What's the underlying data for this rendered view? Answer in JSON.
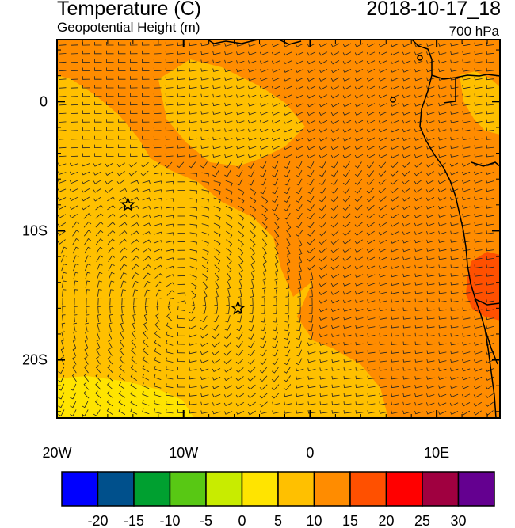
{
  "header": {
    "title": "Temperature (C)",
    "subtitle": "Geopotential Height (m)",
    "datetime": "2018-10-17_18",
    "level": "700 hPa"
  },
  "map": {
    "lon_range": [
      -20,
      15
    ],
    "lat_range": [
      -24.5,
      4.8
    ],
    "x_ticks": [
      {
        "value": -20,
        "label": "20W"
      },
      {
        "value": -10,
        "label": "10W"
      },
      {
        "value": 0,
        "label": "0"
      },
      {
        "value": 10,
        "label": "10E"
      }
    ],
    "y_ticks": [
      {
        "value": 0,
        "label": "0"
      },
      {
        "value": -10,
        "label": "10S"
      },
      {
        "value": -20,
        "label": "20S"
      }
    ],
    "stations": [
      {
        "lon": -14.4,
        "lat": -8.0
      },
      {
        "lon": -5.7,
        "lat": -16.0
      }
    ]
  },
  "colorbar": {
    "colors": [
      "#0000ff",
      "#00508c",
      "#00a030",
      "#58c814",
      "#c8ec00",
      "#ffe400",
      "#ffc000",
      "#ff8c00",
      "#ff5000",
      "#ff0000",
      "#a00040",
      "#640090"
    ],
    "labels": [
      "-20",
      "-15",
      "-10",
      "-5",
      "0",
      "5",
      "10",
      "15",
      "20",
      "25",
      "30"
    ]
  }
}
